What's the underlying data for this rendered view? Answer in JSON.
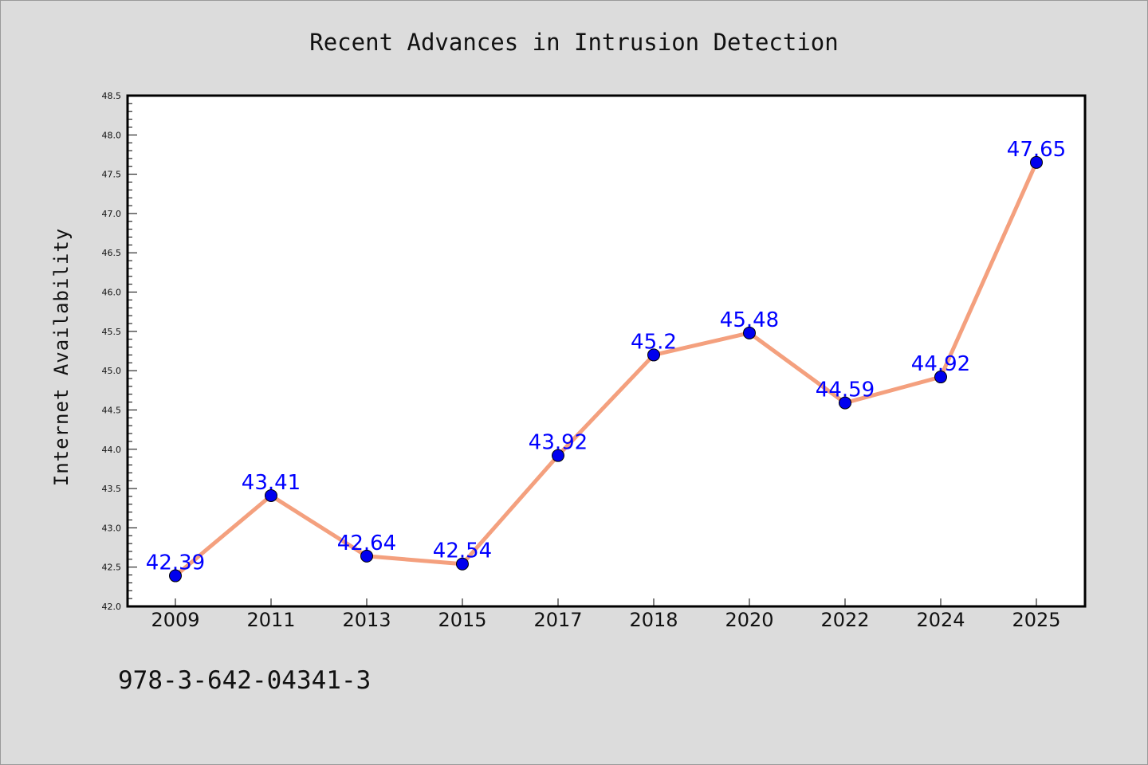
{
  "chart_data": {
    "type": "line",
    "title": "Recent Advances in Intrusion Detection",
    "xlabel": "",
    "ylabel": "Internet Availability",
    "categories": [
      "2009",
      "2011",
      "2013",
      "2015",
      "2017",
      "2018",
      "2020",
      "2022",
      "2024",
      "2025"
    ],
    "series": [
      {
        "values": [
          42.39,
          43.41,
          42.64,
          42.54,
          43.92,
          45.2,
          45.48,
          44.59,
          44.92,
          47.65
        ]
      }
    ],
    "data_labels": [
      "42.39",
      "43.41",
      "42.64",
      "42.54",
      "43.92",
      "45.2",
      "45.48",
      "44.59",
      "44.92",
      "47.65"
    ],
    "ylim": [
      42.0,
      48.5
    ],
    "yticks": [
      "42.0",
      "42.5",
      "43.0",
      "43.5",
      "44.0",
      "44.5",
      "45.0",
      "45.5",
      "46.0",
      "46.5",
      "47.0",
      "47.5",
      "48.0",
      "48.5"
    ],
    "grid": false,
    "legend": "none",
    "colors": {
      "line": "#f4a07e",
      "marker": "#0000ee",
      "label": "#0000ff",
      "background": "#dcdcdc",
      "plot_bg": "#ffffff"
    }
  },
  "footer": {
    "text": "978-3-642-04341-3"
  }
}
